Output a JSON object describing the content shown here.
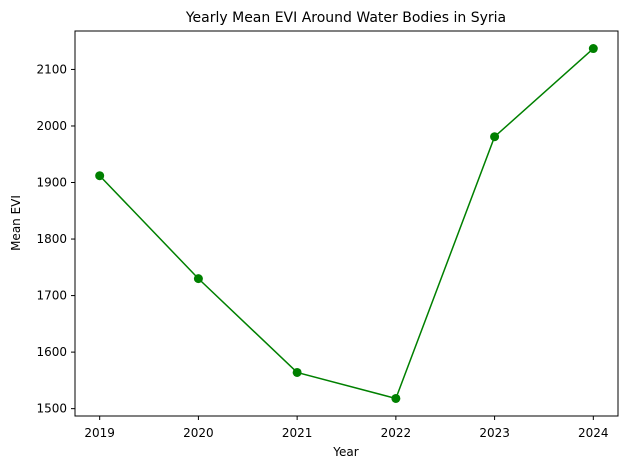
{
  "chart_data": {
    "type": "line",
    "title": "Yearly Mean EVI Around Water Bodies in Syria",
    "xlabel": "Year",
    "ylabel": "Mean EVI",
    "categories": [
      "2019",
      "2020",
      "2021",
      "2022",
      "2023",
      "2024"
    ],
    "x": [
      2019,
      2020,
      2021,
      2022,
      2023,
      2024
    ],
    "series": [
      {
        "values": [
          1912,
          1730,
          1564,
          1518,
          1981,
          2137
        ],
        "color": "#008000",
        "marker": "circle"
      }
    ],
    "xlim": [
      2018.75,
      2024.25
    ],
    "ylim": [
      1487,
      2168
    ],
    "yticks": [
      1500,
      1600,
      1700,
      1800,
      1900,
      2000,
      2100
    ],
    "grid": false,
    "legend": "none"
  }
}
